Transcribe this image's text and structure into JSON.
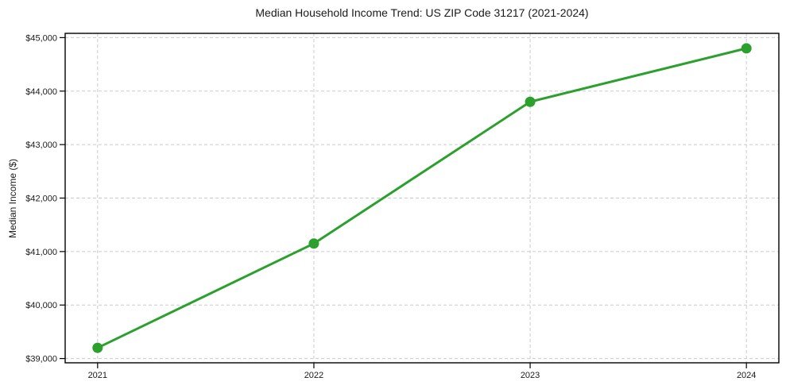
{
  "chart_data": {
    "type": "line",
    "title": "Median Household Income Trend: US ZIP Code 31217 (2021-2024)",
    "xlabel": "",
    "ylabel": "Median Income ($)",
    "x": [
      2021,
      2022,
      2023,
      2024
    ],
    "values": [
      39200,
      41150,
      43800,
      44800
    ],
    "xticks": [
      2021,
      2022,
      2023,
      2024
    ],
    "xtick_labels": [
      "2021",
      "2022",
      "2023",
      "2024"
    ],
    "yticks": [
      39000,
      40000,
      41000,
      42000,
      43000,
      44000,
      45000
    ],
    "ytick_labels": [
      "$39,000",
      "$40,000",
      "$41,000",
      "$42,000",
      "$43,000",
      "$44,000",
      "$45,000"
    ],
    "xlim": [
      2020.85,
      2024.15
    ],
    "ylim": [
      38920,
      45080
    ],
    "grid": "dashed",
    "legend": "none",
    "colors": {
      "line": "#2ca02c",
      "marker": "#2ca02c",
      "grid": "#cbcbcb",
      "frame": "#000000",
      "text": "#1a1a1a",
      "background": "#ffffff"
    },
    "marker_shape": "circle"
  }
}
